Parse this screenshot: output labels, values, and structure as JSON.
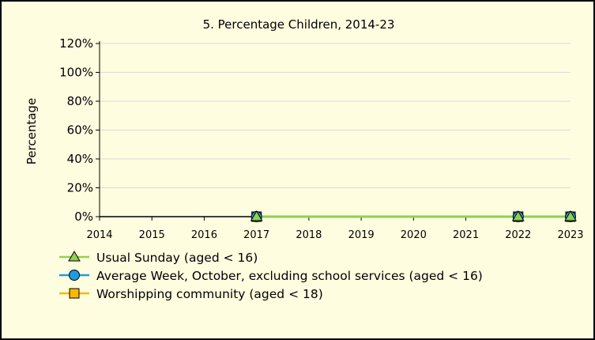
{
  "chart_data": {
    "type": "line",
    "title": "5. Percentage Children, 2014-23",
    "ylabel": "Percentage",
    "xlabel": "",
    "x": [
      2014,
      2015,
      2016,
      2017,
      2018,
      2019,
      2020,
      2021,
      2022,
      2023
    ],
    "x_tick_labels": [
      "2014",
      "2015",
      "2016",
      "2017",
      "2018",
      "2019",
      "2020",
      "2021",
      "2022",
      "2023"
    ],
    "ylim": [
      0,
      1.2
    ],
    "y_ticks": [
      0,
      0.2,
      0.4,
      0.6,
      0.8,
      1.0,
      1.2
    ],
    "y_tick_labels": [
      "0%",
      "20%",
      "40%",
      "60%",
      "80%",
      "100%",
      "120%"
    ],
    "grid": "horizontal",
    "legend_position": "bottom",
    "series": [
      {
        "name": "Usual Sunday (aged < 16)",
        "color": "#92D050",
        "marker": "triangle",
        "points": [
          [
            2017,
            0
          ],
          [
            2022,
            0
          ],
          [
            2023,
            0
          ]
        ]
      },
      {
        "name": "Average Week, October, excluding school services (aged < 16)",
        "color": "#1F9CE0",
        "marker": "circle",
        "points": [
          [
            2017,
            0
          ],
          [
            2022,
            0
          ],
          [
            2023,
            0
          ]
        ]
      },
      {
        "name": "Worshipping community (aged < 18)",
        "color": "#F5B800",
        "marker": "square",
        "points": [
          [
            2017,
            0
          ],
          [
            2022,
            0
          ],
          [
            2023,
            0
          ]
        ]
      }
    ]
  }
}
